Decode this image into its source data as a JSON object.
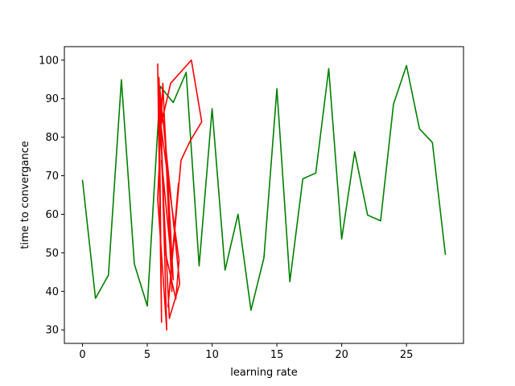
{
  "chart_data": {
    "type": "line",
    "title": "",
    "xlabel": "learning rate",
    "ylabel": "time to convergance",
    "xlim": [
      -1.4,
      29.4
    ],
    "ylim": [
      26.5,
      103.5
    ],
    "xticks": [
      0,
      5,
      10,
      15,
      20,
      25
    ],
    "yticks": [
      30,
      40,
      50,
      60,
      70,
      80,
      90,
      100
    ],
    "grid": false,
    "legend": "none",
    "series": [
      {
        "color": "#008000",
        "x": [
          0,
          1,
          2,
          3,
          4,
          5,
          6,
          7,
          8,
          9,
          10,
          11,
          12,
          13,
          14,
          15,
          16,
          17,
          18,
          19,
          20,
          21,
          22,
          23,
          24,
          25,
          26,
          27,
          28
        ],
        "y": [
          68.8,
          38.2,
          44.2,
          94.9,
          47.1,
          36.2,
          93.2,
          89.0,
          96.8,
          46.6,
          87.4,
          45.5,
          60.0,
          35.1,
          48.7,
          92.6,
          42.5,
          69.2,
          70.7,
          97.8,
          53.6,
          76.2,
          59.8,
          58.3,
          88.6,
          98.6,
          82.2,
          78.6,
          49.6
        ]
      },
      {
        "color": "#ff0000",
        "x": [
          5.8,
          6.1,
          5.9,
          6.3,
          6.0,
          6.5,
          5.8,
          6.2,
          6.9,
          6.3,
          7.0,
          6.1,
          6.7,
          7.5,
          5.95,
          6.4,
          7.2,
          7.45,
          6.05,
          6.8,
          8.4,
          9.2,
          8.3,
          7.6,
          6.6,
          7.4
        ],
        "y": [
          99.0,
          32.0,
          95.5,
          58.0,
          90.0,
          30.0,
          64.0,
          94.0,
          40.0,
          86.0,
          43.0,
          74.0,
          33.0,
          42.0,
          93.0,
          50.0,
          38.0,
          48.0,
          83.0,
          94.0,
          100.0,
          84.0,
          79.0,
          74.0,
          36.0,
          68.0
        ]
      }
    ]
  }
}
